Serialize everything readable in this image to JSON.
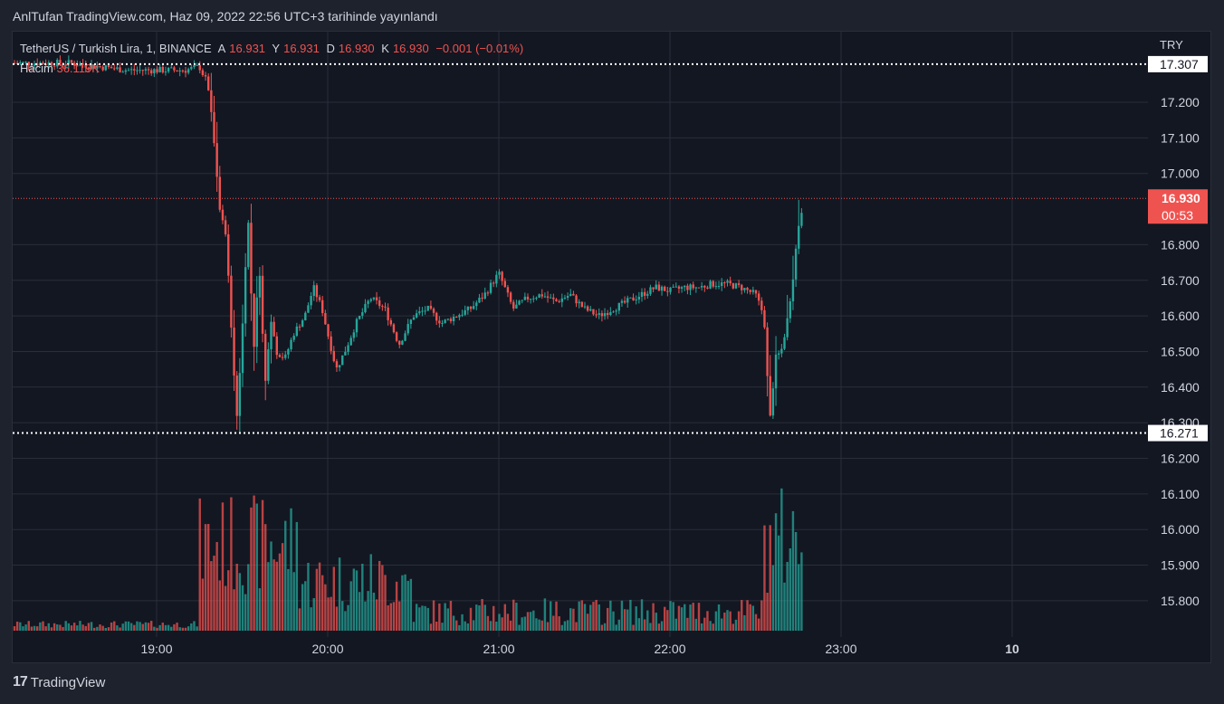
{
  "caption": "AnlTufan TradingView.com, Haz 09, 2022 22:56 UTC+3 tarihinde yayınlandı",
  "legend": {
    "symbol": "TetherUS / Turkish Lira, 1, BINANCE",
    "o_label": "A",
    "o_value": "16.931",
    "h_label": "Y",
    "h_value": "16.931",
    "l_label": "D",
    "l_value": "16.930",
    "c_label": "K",
    "c_value": "16.930",
    "change": "−0.001 (−0.01%)"
  },
  "volume_legend": {
    "label": "Hacim",
    "value": "36.119K"
  },
  "currency": "TRY",
  "footer_brand": "TradingView",
  "colors": {
    "up": "#26a69a",
    "down": "#ef5350",
    "bg": "#131722",
    "grid": "#2a2e39"
  },
  "chart_data": {
    "type": "candlestick",
    "x_ticks": [
      "19:00",
      "20:00",
      "21:00",
      "22:00",
      "23:00",
      "10"
    ],
    "y_ticks": [
      "17.200",
      "17.100",
      "17.000",
      "16.800",
      "16.700",
      "16.600",
      "16.500",
      "16.400",
      "16.300",
      "16.200",
      "16.100",
      "16.000",
      "15.900",
      "15.800"
    ],
    "ylim": [
      15.75,
      17.35
    ],
    "price_markers": {
      "high_line": "17.307",
      "low_line": "16.271",
      "last_price": "16.930",
      "countdown": "00:53"
    },
    "price_path": [
      [
        "18:30",
        17.31
      ],
      [
        "18:40",
        17.3
      ],
      [
        "18:50",
        17.29
      ],
      [
        "19:00",
        17.29
      ],
      [
        "19:10",
        17.29
      ],
      [
        "19:15",
        17.3
      ],
      [
        "19:18",
        17.25
      ],
      [
        "19:20",
        17.1
      ],
      [
        "19:22",
        16.9
      ],
      [
        "19:24",
        16.85
      ],
      [
        "19:26",
        16.6
      ],
      [
        "19:28",
        16.3
      ],
      [
        "19:30",
        16.55
      ],
      [
        "19:32",
        16.89
      ],
      [
        "19:34",
        16.5
      ],
      [
        "19:36",
        16.75
      ],
      [
        "19:38",
        16.4
      ],
      [
        "19:40",
        16.6
      ],
      [
        "19:42",
        16.5
      ],
      [
        "19:45",
        16.48
      ],
      [
        "19:48",
        16.55
      ],
      [
        "19:52",
        16.6
      ],
      [
        "19:55",
        16.68
      ],
      [
        "19:58",
        16.62
      ],
      [
        "20:00",
        16.55
      ],
      [
        "20:03",
        16.45
      ],
      [
        "20:06",
        16.5
      ],
      [
        "20:10",
        16.58
      ],
      [
        "20:15",
        16.65
      ],
      [
        "20:20",
        16.62
      ],
      [
        "20:25",
        16.52
      ],
      [
        "20:30",
        16.6
      ],
      [
        "20:35",
        16.62
      ],
      [
        "20:40",
        16.58
      ],
      [
        "20:45",
        16.6
      ],
      [
        "20:50",
        16.62
      ],
      [
        "20:55",
        16.66
      ],
      [
        "21:00",
        16.72
      ],
      [
        "21:02",
        16.68
      ],
      [
        "21:05",
        16.62
      ],
      [
        "21:10",
        16.65
      ],
      [
        "21:15",
        16.66
      ],
      [
        "21:20",
        16.64
      ],
      [
        "21:25",
        16.66
      ],
      [
        "21:30",
        16.62
      ],
      [
        "21:35",
        16.6
      ],
      [
        "21:40",
        16.62
      ],
      [
        "21:45",
        16.64
      ],
      [
        "21:50",
        16.66
      ],
      [
        "21:55",
        16.68
      ],
      [
        "22:00",
        16.67
      ],
      [
        "22:05",
        16.68
      ],
      [
        "22:10",
        16.68
      ],
      [
        "22:15",
        16.69
      ],
      [
        "22:20",
        16.69
      ],
      [
        "22:25",
        16.68
      ],
      [
        "22:30",
        16.66
      ],
      [
        "22:33",
        16.6
      ],
      [
        "22:35",
        16.3
      ],
      [
        "22:37",
        16.48
      ],
      [
        "22:39",
        16.5
      ],
      [
        "22:41",
        16.58
      ],
      [
        "22:43",
        16.7
      ],
      [
        "22:45",
        16.85
      ],
      [
        "22:47",
        16.93
      ]
    ],
    "volume_pattern": "low before 19:15, spike 19:15-19:50, moderate until 20:30, low until 22:33, spike 22:33-22:47"
  }
}
